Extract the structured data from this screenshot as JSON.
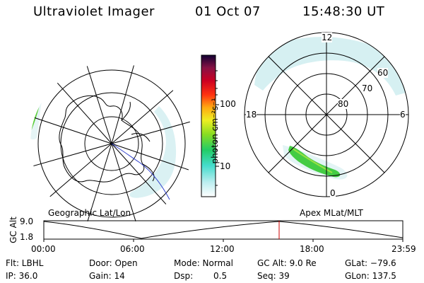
{
  "header": {
    "title": "Ultraviolet Imager",
    "date": "01 Oct 07",
    "time": "15:48:30 UT"
  },
  "colorbar": {
    "label": "photon cm⁻²s⁻¹",
    "ticks": [
      "100",
      "10"
    ]
  },
  "geo_panel": {
    "caption": "Geographic Lat/Lon"
  },
  "mlt_panel": {
    "caption": "Apex MLat/MLT",
    "hour_labels": {
      "top": "12",
      "left": "18",
      "right": "6",
      "bottom": "0"
    },
    "lat_labels": [
      "60",
      "70",
      "80"
    ]
  },
  "altitude_plot": {
    "ylabel": "GC Alt",
    "ytick_top": "9.0",
    "ytick_bottom": "1.8",
    "xticks": [
      "00:00",
      "06:00",
      "12:00",
      "18:00",
      "23:59"
    ]
  },
  "info": {
    "row1": {
      "flt": "Flt: LBHL",
      "door": "Door: Open",
      "mode": "Mode: Normal",
      "gcalt": "GC Alt: 9.0 Re",
      "glat": "GLat: −79.6"
    },
    "row2": {
      "ip": "IP: 36.0",
      "gain": "Gain: 14",
      "dsp_label": "Dsp:",
      "dsp_value": "0.5",
      "seq": "Seq: 39",
      "glon": "GLon: 137.5"
    }
  },
  "colors": {
    "ink": "#000000",
    "marker": "#cc0000",
    "coast": "#000000",
    "track": "#3344cc"
  }
}
